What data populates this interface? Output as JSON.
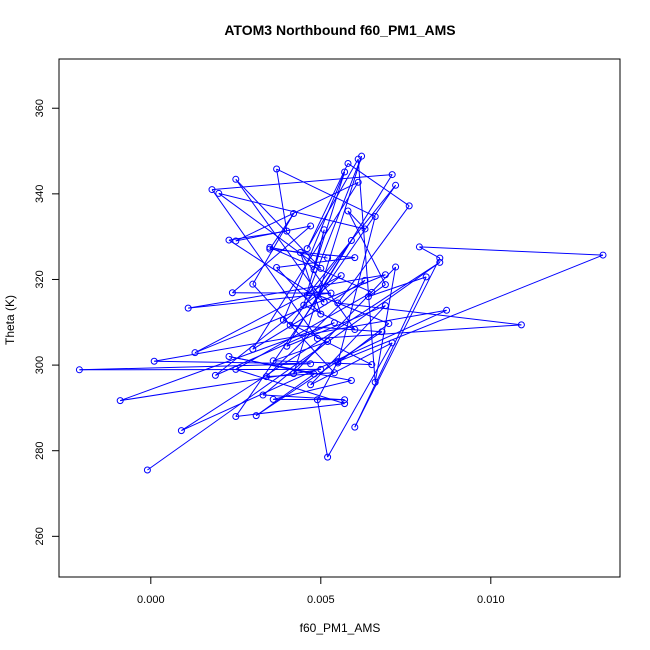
{
  "chart_data": {
    "type": "line",
    "title": "ATOM3 Northbound f60_PM1_AMS",
    "xlabel": "f60_PM1_AMS",
    "ylabel": "Theta (K)",
    "xlim": [
      -0.0027,
      0.0138
    ],
    "ylim": [
      250.5,
      371.5
    ],
    "x_ticks": [
      0.0,
      0.005,
      0.01
    ],
    "x_tick_labels": [
      "0.000",
      "0.005",
      "0.010"
    ],
    "y_ticks": [
      260,
      280,
      300,
      320,
      340,
      360
    ],
    "y_tick_labels": [
      "260",
      "280",
      "300",
      "320",
      "340",
      "360"
    ],
    "grid": false,
    "legend": "none",
    "series_color": "#0000ff",
    "marker": "open-circle",
    "series": [
      {
        "points": [
          [
            -0.0001,
            275.5
          ],
          [
            0.0085,
            324.0
          ],
          [
            0.0009,
            284.7
          ],
          [
            0.0087,
            312.8
          ],
          [
            0.0001,
            300.9
          ],
          [
            0.0047,
            300.3
          ],
          [
            -0.0021,
            298.9
          ],
          [
            0.005,
            299.0
          ],
          [
            -0.0009,
            291.7
          ],
          [
            0.0054,
            309.9
          ],
          [
            0.0019,
            297.6
          ],
          [
            0.0056,
            320.9
          ],
          [
            0.0013,
            302.9
          ],
          [
            0.0069,
            321.1
          ],
          [
            0.0011,
            313.3
          ],
          [
            0.0053,
            316.8
          ],
          [
            0.0024,
            316.9
          ],
          [
            0.0047,
            332.5
          ],
          [
            0.0025,
            329.0
          ],
          [
            0.0061,
            342.7
          ],
          [
            0.003,
            303.7
          ],
          [
            0.0063,
            319.8
          ],
          [
            0.0034,
            297.3
          ],
          [
            0.0054,
            298.2
          ],
          [
            0.003,
            318.9
          ],
          [
            0.0042,
            335.4
          ],
          [
            0.0035,
            327.1
          ],
          [
            0.006,
            325.1
          ],
          [
            0.0037,
            322.8
          ],
          [
            0.005,
            311.9
          ],
          [
            0.0044,
            326.3
          ],
          [
            0.006,
            308.3
          ],
          [
            0.0045,
            314.0
          ],
          [
            0.0051,
            331.6
          ],
          [
            0.0048,
            322.3
          ],
          [
            0.0057,
            345.1
          ],
          [
            0.0039,
            310.5
          ],
          [
            0.0065,
            300.1
          ],
          [
            0.0036,
            301.0
          ],
          [
            0.0052,
            305.5
          ],
          [
            0.0033,
            293.0
          ],
          [
            0.0057,
            291.9
          ],
          [
            0.0036,
            292.0
          ],
          [
            0.0059,
            296.4
          ],
          [
            0.0023,
            302.0
          ],
          [
            0.0048,
            297.9
          ],
          [
            0.0031,
            288.2
          ],
          [
            0.0068,
            307.8
          ],
          [
            0.0041,
            309.3
          ],
          [
            0.0059,
            329.1
          ],
          [
            0.004,
            304.4
          ],
          [
            0.0069,
            313.9
          ],
          [
            0.0047,
            295.4
          ],
          [
            0.0071,
            305.2
          ],
          [
            0.0052,
            278.5
          ],
          [
            0.0049,
            291.9
          ],
          [
            0.0055,
            300.8
          ],
          [
            0.0133,
            325.7
          ],
          [
            0.0079,
            327.6
          ],
          [
            0.0085,
            325.0
          ],
          [
            0.006,
            285.5
          ],
          [
            0.0081,
            320.6
          ],
          [
            0.0064,
            316.0
          ],
          [
            0.0069,
            318.8
          ],
          [
            0.0058,
            336.0
          ],
          [
            0.0063,
            331.8
          ],
          [
            0.002,
            340.1
          ],
          [
            0.005,
            322.6
          ],
          [
            0.0025,
            343.4
          ],
          [
            0.0051,
            314.7
          ],
          [
            0.0023,
            329.2
          ],
          [
            0.004,
            331.3
          ],
          [
            0.0037,
            345.8
          ],
          [
            0.0066,
            334.7
          ],
          [
            0.0055,
            300.5
          ],
          [
            0.007,
            309.7
          ],
          [
            0.0049,
            316.4
          ],
          [
            0.0071,
            344.5
          ],
          [
            0.0018,
            341.0
          ],
          [
            0.0049,
            306.2
          ],
          [
            0.0109,
            309.4
          ],
          [
            0.0055,
            314.5
          ],
          [
            0.0076,
            337.2
          ],
          [
            0.0058,
            347.1
          ],
          [
            0.0046,
            327.2
          ],
          [
            0.0061,
            348.1
          ],
          [
            0.0066,
            296.0
          ],
          [
            0.0072,
            322.9
          ],
          [
            0.0042,
            298.0
          ],
          [
            0.0062,
            348.8
          ],
          [
            0.0046,
            316.3
          ],
          [
            0.0072,
            342.0
          ],
          [
            0.0025,
            288.0
          ],
          [
            0.0057,
            291.0
          ],
          [
            0.0025,
            299.0
          ],
          [
            0.0065,
            317.0
          ],
          [
            0.0035,
            327.5
          ],
          [
            0.0052,
            325.0
          ]
        ]
      }
    ]
  }
}
